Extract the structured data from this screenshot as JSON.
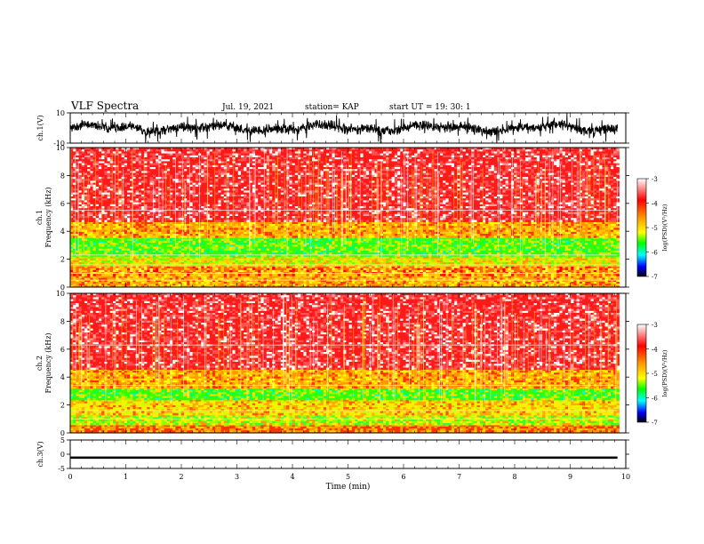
{
  "header": {
    "title": "VLF Spectra",
    "date": "Jul. 19, 2021",
    "station": "station= KAP",
    "start": "start UT = 19: 30: 1"
  },
  "chart_data": [
    {
      "type": "line",
      "panel": "ch1-waveform",
      "ylabel": "ch.1(V)",
      "ylim": [
        -10,
        10
      ],
      "yticks": [
        "10",
        "-10"
      ],
      "xlim": [
        0,
        10
      ],
      "x_data_end": 9.85,
      "envelope": {
        "typical_min": -4,
        "typical_max": 4,
        "burst_max": 10,
        "burst_min": -10
      },
      "color": "#000000"
    },
    {
      "type": "heatmap",
      "panel": "ch1-spectrogram",
      "ylabel": "ch.1\nFrequency (kHz)",
      "ylim": [
        0,
        10
      ],
      "yticks": [
        "0",
        "2",
        "4",
        "6",
        "8",
        "10"
      ],
      "xlim": [
        0,
        10
      ],
      "x_data_end": 9.85,
      "bands_khz": [
        {
          "from": 0,
          "to": 0.8,
          "level": "yellow-orange"
        },
        {
          "from": 0.8,
          "to": 1.5,
          "level": "orange-yellow"
        },
        {
          "from": 1.5,
          "to": 2.2,
          "level": "yellow-green"
        },
        {
          "from": 2.2,
          "to": 3.6,
          "level": "green"
        },
        {
          "from": 3.6,
          "to": 4.8,
          "level": "yellow-orange"
        },
        {
          "from": 4.8,
          "to": 10,
          "level": "red"
        }
      ],
      "horizontal_lines_khz": [
        5.5,
        2.3,
        1.6,
        1.0,
        0.5
      ]
    },
    {
      "type": "heatmap",
      "panel": "ch2-spectrogram",
      "ylabel": "ch.2\nFrequency (kHz)",
      "ylim": [
        0,
        10
      ],
      "yticks": [
        "0",
        "2",
        "4",
        "6",
        "8",
        "10"
      ],
      "xlim": [
        0,
        10
      ],
      "x_data_end": 9.85,
      "bands_khz": [
        {
          "from": 0,
          "to": 0.6,
          "level": "orange"
        },
        {
          "from": 0.6,
          "to": 1.4,
          "level": "green-yellow"
        },
        {
          "from": 1.4,
          "to": 2.4,
          "level": "yellow"
        },
        {
          "from": 2.4,
          "to": 3.2,
          "level": "green"
        },
        {
          "from": 3.2,
          "to": 4.6,
          "level": "yellow-orange"
        },
        {
          "from": 4.6,
          "to": 10,
          "level": "red"
        }
      ],
      "horizontal_lines_khz": [
        6.3,
        3.4,
        1.6,
        1.0
      ]
    },
    {
      "type": "line",
      "panel": "ch3-waveform",
      "ylabel": "ch.3(V)",
      "ylim": [
        -5,
        5
      ],
      "yticks": [
        "5",
        "0",
        "-5"
      ],
      "xlim": [
        0,
        10
      ],
      "x_data_end": 9.85,
      "constant_band": {
        "min": -1.6,
        "max": -0.8
      },
      "xticks": [
        "0",
        "1",
        "2",
        "3",
        "4",
        "5",
        "6",
        "7",
        "8",
        "9",
        "10"
      ],
      "xlabel": "Time (min)",
      "color": "#000000"
    }
  ],
  "colorbars": [
    {
      "panel": "ch1",
      "ticks": [
        "-3",
        "-4",
        "-5",
        "-6",
        "-7"
      ],
      "tick_values": [
        -3,
        -4,
        -5,
        -6,
        -7
      ],
      "label": "log(PSD)(V²/Hz)",
      "colors": [
        "#ffffff",
        "#ff0000",
        "#ff9900",
        "#ffff00",
        "#00ff00",
        "#00ffff",
        "#0000ff",
        "#000000"
      ]
    },
    {
      "panel": "ch2",
      "ticks": [
        "-3",
        "-4",
        "-5",
        "-6",
        "-7"
      ],
      "tick_values": [
        -3,
        -4,
        -5,
        -6,
        -7
      ],
      "label": "log(PSD)(V²/Hz)",
      "colors": [
        "#ffffff",
        "#ff0000",
        "#ff9900",
        "#ffff00",
        "#00ff00",
        "#00ffff",
        "#0000ff",
        "#000000"
      ]
    }
  ]
}
